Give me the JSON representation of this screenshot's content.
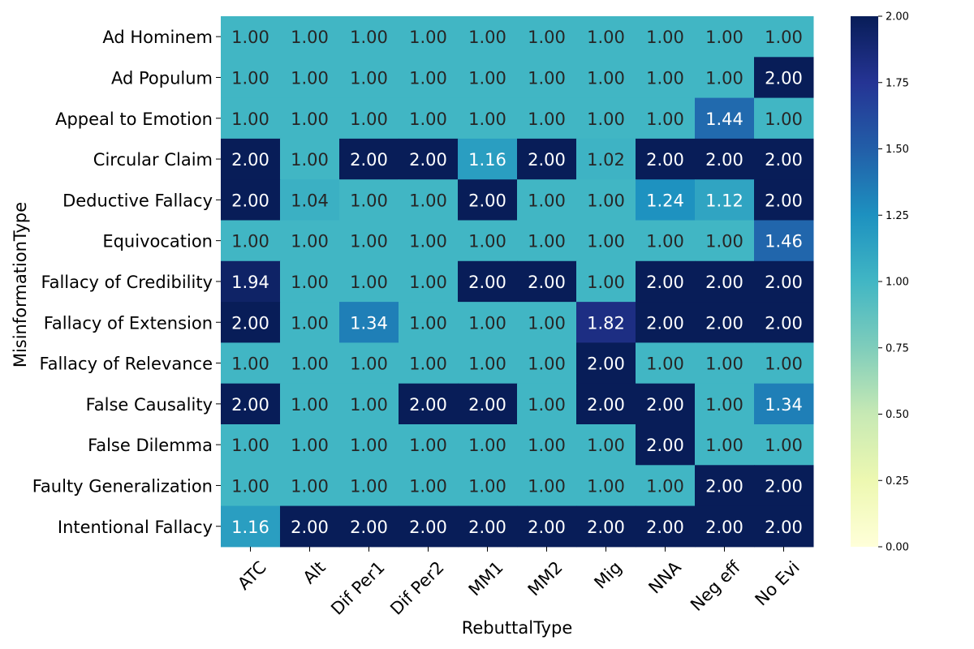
{
  "chart_data": {
    "type": "heatmap",
    "xlabel": "RebuttalType",
    "ylabel": "MisinformationType",
    "columns": [
      "ATC",
      "Alt",
      "Dif Per1",
      "Dif Per2",
      "MM1",
      "MM2",
      "Mig",
      "NNA",
      "Neg eff",
      "No Evi"
    ],
    "rows": [
      "Ad Hominem",
      "Ad Populum",
      "Appeal to Emotion",
      "Circular Claim",
      "Deductive Fallacy",
      "Equivocation",
      "Fallacy of Credibility",
      "Fallacy of Extension",
      "Fallacy of Relevance",
      "False Causality",
      "False Dilemma",
      "Faulty Generalization",
      "Intentional Fallacy"
    ],
    "values": [
      [
        1.0,
        1.0,
        1.0,
        1.0,
        1.0,
        1.0,
        1.0,
        1.0,
        1.0,
        1.0
      ],
      [
        1.0,
        1.0,
        1.0,
        1.0,
        1.0,
        1.0,
        1.0,
        1.0,
        1.0,
        2.0
      ],
      [
        1.0,
        1.0,
        1.0,
        1.0,
        1.0,
        1.0,
        1.0,
        1.0,
        1.44,
        1.0
      ],
      [
        2.0,
        1.0,
        2.0,
        2.0,
        1.16,
        2.0,
        1.02,
        2.0,
        2.0,
        2.0
      ],
      [
        2.0,
        1.04,
        1.0,
        1.0,
        2.0,
        1.0,
        1.0,
        1.24,
        1.12,
        2.0
      ],
      [
        1.0,
        1.0,
        1.0,
        1.0,
        1.0,
        1.0,
        1.0,
        1.0,
        1.0,
        1.46
      ],
      [
        1.94,
        1.0,
        1.0,
        1.0,
        2.0,
        2.0,
        1.0,
        2.0,
        2.0,
        2.0
      ],
      [
        2.0,
        1.0,
        1.34,
        1.0,
        1.0,
        1.0,
        1.82,
        2.0,
        2.0,
        2.0
      ],
      [
        1.0,
        1.0,
        1.0,
        1.0,
        1.0,
        1.0,
        2.0,
        1.0,
        1.0,
        1.0
      ],
      [
        2.0,
        1.0,
        1.0,
        2.0,
        2.0,
        1.0,
        2.0,
        2.0,
        1.0,
        1.34
      ],
      [
        1.0,
        1.0,
        1.0,
        1.0,
        1.0,
        1.0,
        1.0,
        2.0,
        1.0,
        1.0
      ],
      [
        1.0,
        1.0,
        1.0,
        1.0,
        1.0,
        1.0,
        1.0,
        1.0,
        2.0,
        2.0
      ],
      [
        1.16,
        2.0,
        2.0,
        2.0,
        2.0,
        2.0,
        2.0,
        2.0,
        2.0,
        2.0
      ]
    ],
    "value_format": "2 decimals",
    "colormap": "YlGnBu",
    "vmin": 0.0,
    "vmax": 2.0,
    "colorbar": {
      "ticks": [
        0.0,
        0.25,
        0.5,
        0.75,
        1.0,
        1.25,
        1.5,
        1.75,
        2.0
      ],
      "tick_labels": [
        "0.00",
        "0.25",
        "0.50",
        "0.75",
        "1.00",
        "1.25",
        "1.50",
        "1.75",
        "2.00"
      ],
      "placement": "right"
    },
    "annotated": true,
    "grid": false
  }
}
